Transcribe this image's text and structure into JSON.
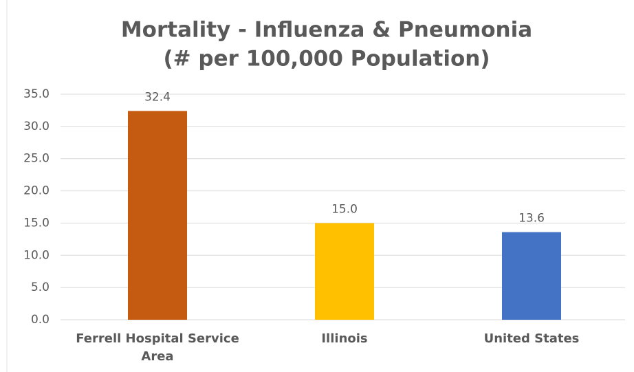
{
  "chart_data": {
    "type": "bar",
    "title": [
      "Mortality - Influenza & Pneumonia",
      "(# per 100,000 Population)"
    ],
    "categories": [
      "Ferrell Hospital Service Area",
      "Illinois",
      "United States"
    ],
    "values": [
      32.4,
      15.0,
      13.6
    ],
    "value_labels": [
      "32.4",
      "15.0",
      "13.6"
    ],
    "colors": [
      "#c55a11",
      "#ffc000",
      "#4472c4"
    ],
    "ylim": [
      0,
      35
    ],
    "yticks": [
      {
        "value": 0,
        "label": "0.0"
      },
      {
        "value": 5,
        "label": "5.0"
      },
      {
        "value": 10,
        "label": "10.0"
      },
      {
        "value": 15,
        "label": "15.0"
      },
      {
        "value": 20,
        "label": "20.0"
      },
      {
        "value": 25,
        "label": "25.0"
      },
      {
        "value": 30,
        "label": "30.0"
      },
      {
        "value": 35,
        "label": "35.0"
      }
    ],
    "grid": true
  }
}
